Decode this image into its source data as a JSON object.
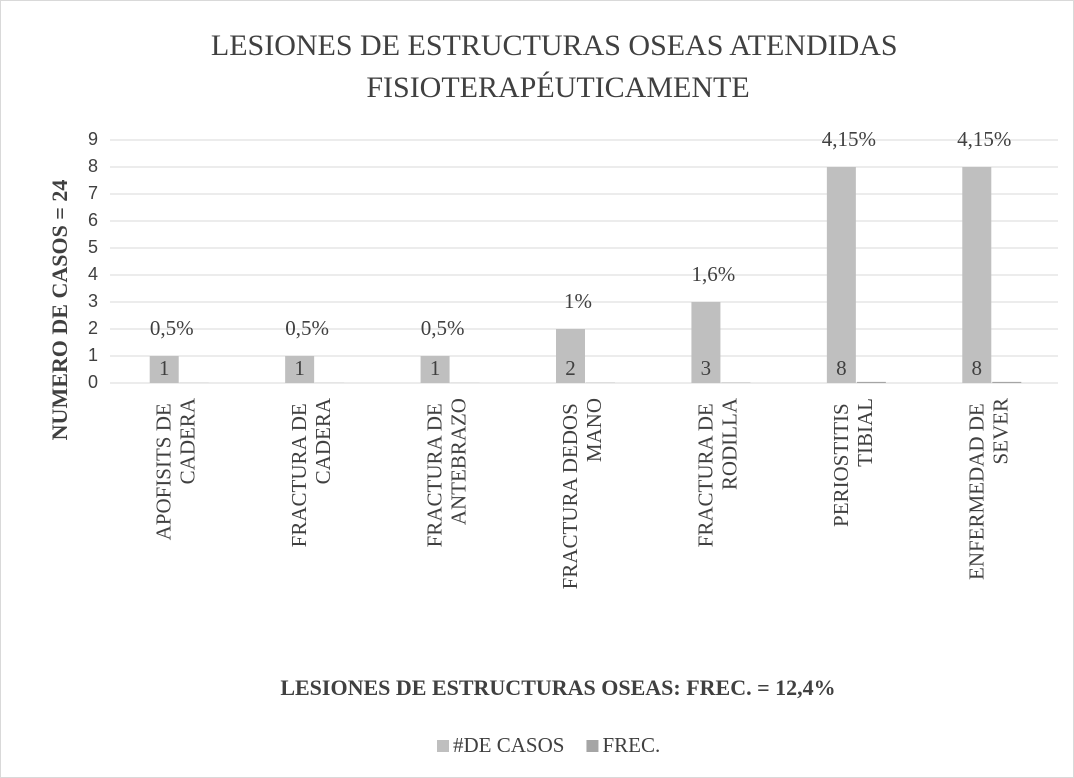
{
  "chart_data": {
    "type": "bar",
    "title": "LESIONES DE ESTRUCTURAS OSEAS ATENDIDAS FISIOTERAPÉUTICAMENTE",
    "x_label": "LESIONES DE ESTRUCTURAS OSEAS: FREC. = 12,4%",
    "y_label": "NUMERO DE CASOS = 24",
    "categories": [
      "APOFISITS DE CADERA",
      "FRACTURA DE CADERA",
      "FRACTURA DE ANTEBRAZO",
      "FRACTURA DEDOS MANO",
      "FRACTURA DE RODILLA",
      "PERIOSTITIS TIBIAL",
      "ENFERMEDAD DE SEVER"
    ],
    "series": [
      {
        "name": "#DE CASOS",
        "color": "#bfbfbf",
        "values": [
          1,
          1,
          1,
          2,
          3,
          8,
          8
        ]
      },
      {
        "name": "FREC.",
        "color": "#a5a5a5",
        "values": [
          0.005,
          0.005,
          0.005,
          0.01,
          0.016,
          0.0415,
          0.0415
        ],
        "value_labels": [
          "0,5%",
          "0,5%",
          "0,5%",
          "1%",
          "1,6%",
          "4,15%",
          "4,15%"
        ]
      }
    ],
    "ylim": [
      0,
      9
    ],
    "yticks": [
      0,
      1,
      2,
      3,
      4,
      5,
      6,
      7,
      8,
      9
    ],
    "grid": true,
    "legend": "bottom"
  }
}
